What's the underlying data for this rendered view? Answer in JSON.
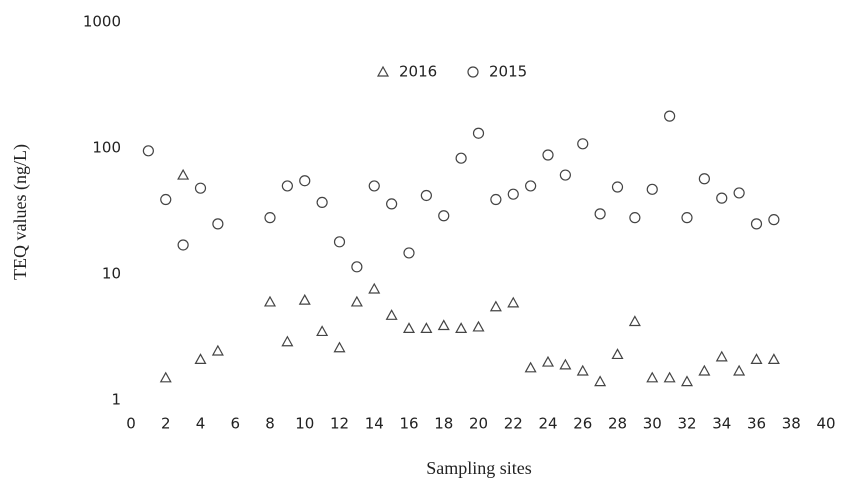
{
  "chart_data": {
    "type": "scatter",
    "x_label": "Sampling sites",
    "y_label": "TEQ values (ng/L)",
    "log_y": true,
    "xlim": [
      0,
      40
    ],
    "ylim": [
      1,
      1000
    ],
    "xticks": [
      0,
      2,
      4,
      6,
      8,
      10,
      12,
      14,
      16,
      18,
      20,
      22,
      24,
      26,
      28,
      30,
      32,
      34,
      36,
      38,
      40
    ],
    "yticks": [
      1,
      10,
      100,
      1000
    ],
    "legend_position": "top",
    "x": [
      1,
      2,
      3,
      4,
      5,
      8,
      9,
      10,
      11,
      12,
      13,
      14,
      15,
      16,
      17,
      18,
      19,
      20,
      21,
      22,
      23,
      24,
      25,
      26,
      27,
      28,
      29,
      30,
      31,
      32,
      33,
      34,
      35,
      36,
      37
    ],
    "series": [
      {
        "name": "2016",
        "marker": "triangle",
        "color": "#444444",
        "values": [
          null,
          1.5,
          61,
          2.1,
          2.45,
          6.0,
          2.9,
          6.2,
          3.5,
          2.6,
          6.0,
          7.6,
          4.7,
          3.7,
          3.7,
          3.9,
          3.7,
          3.8,
          5.5,
          5.9,
          1.8,
          2.0,
          1.9,
          1.7,
          1.4,
          2.3,
          4.2,
          1.5,
          1.5,
          1.4,
          1.7,
          2.2,
          1.7,
          2.1,
          2.1
        ]
      },
      {
        "name": "2015",
        "marker": "circle",
        "color": "#444444",
        "values": [
          95,
          39,
          17,
          48,
          25,
          28,
          50,
          55,
          37,
          18,
          11.4,
          50,
          36,
          14.7,
          42,
          29,
          83,
          131,
          39,
          43,
          50,
          88,
          61,
          108,
          30,
          49,
          28,
          47,
          179,
          28,
          57,
          40,
          44,
          25,
          27
        ]
      }
    ]
  }
}
